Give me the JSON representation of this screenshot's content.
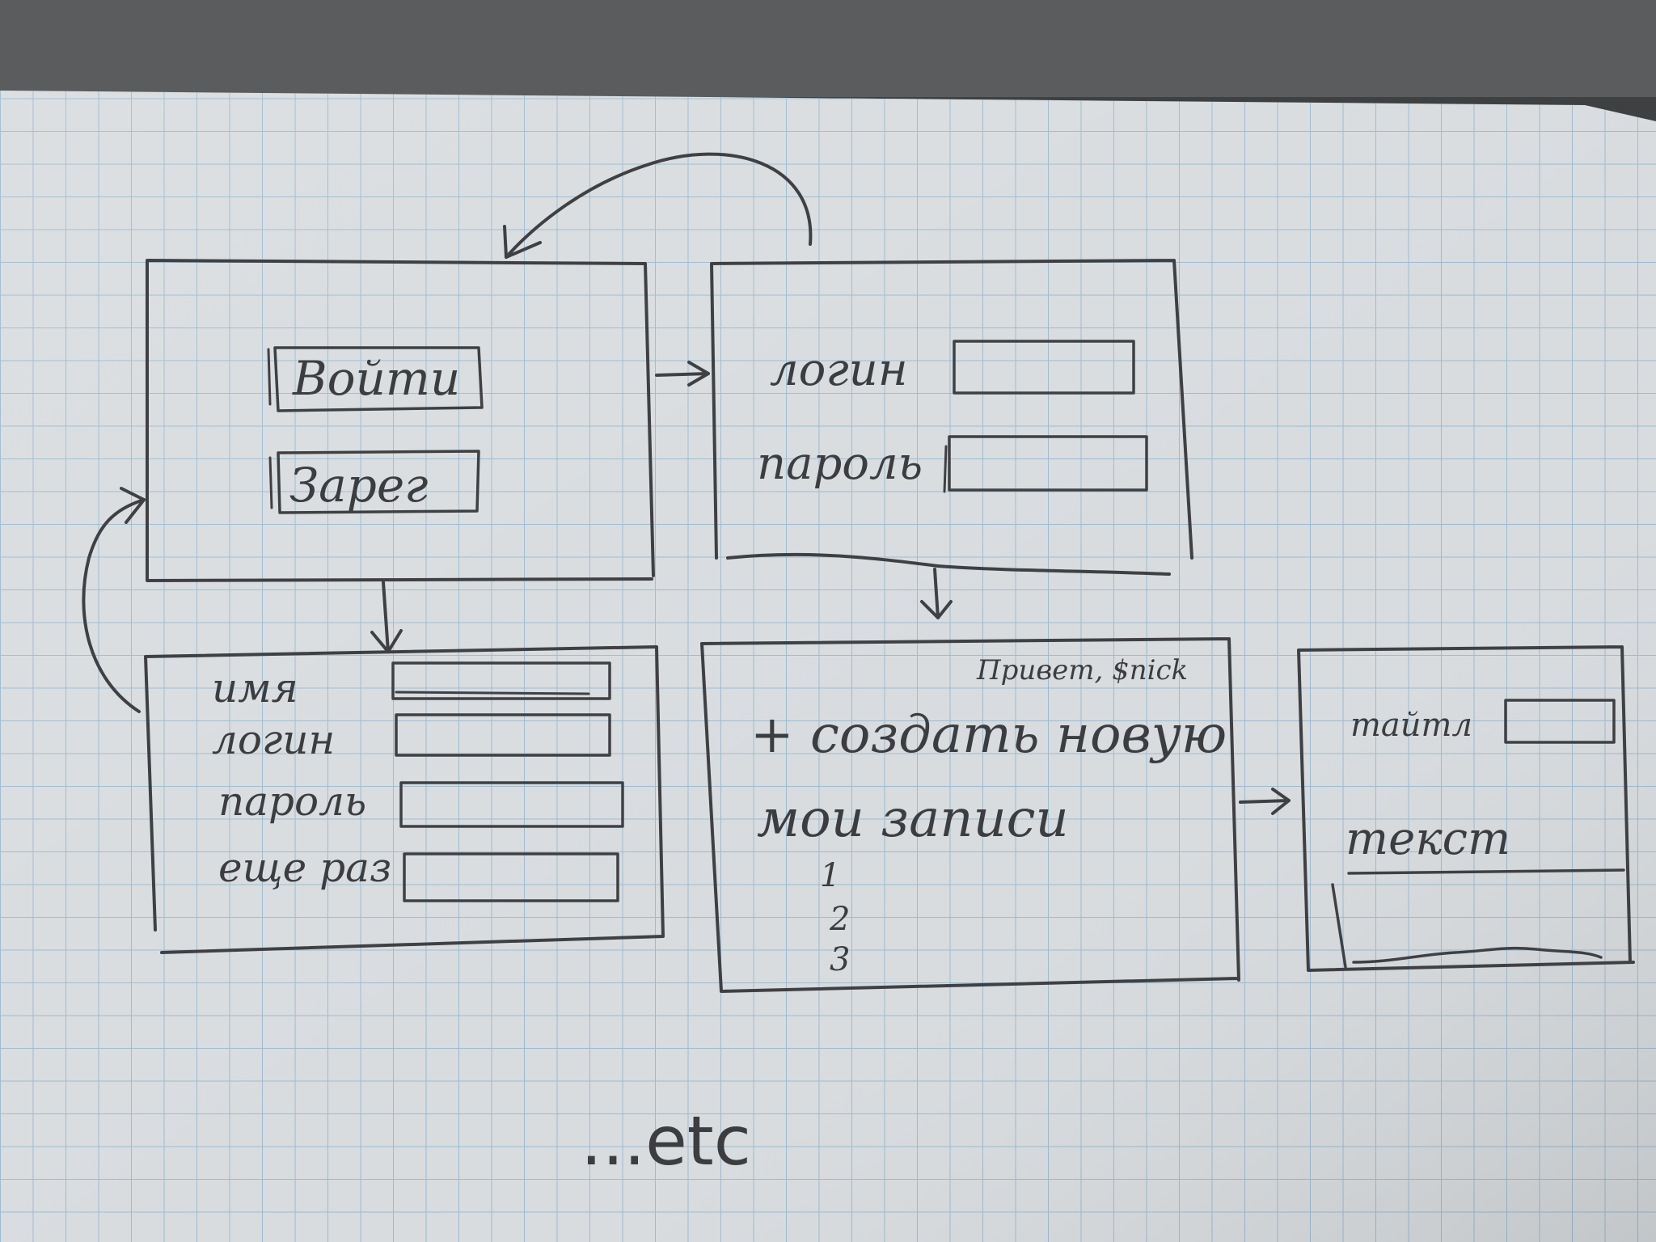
{
  "screens": {
    "start": {
      "login_button": "Войти",
      "register_button": "Зарег"
    },
    "login": {
      "login_label": "логин",
      "password_label": "пароль"
    },
    "register": {
      "name_label": "имя",
      "login_label": "логин",
      "password_label": "пароль",
      "repeat_label": "еще раз"
    },
    "notes": {
      "greeting": "Привет, $nick",
      "create_new": "+ создать новую",
      "my_notes": "мои записи",
      "items": [
        "1",
        "2",
        "3"
      ]
    },
    "editor": {
      "title_label": "тайтл",
      "text_label": "текст"
    }
  },
  "footer_text": "...etc",
  "colors": {
    "paper": "#d9dde0",
    "grid": "#9dbad0",
    "ink": "#3c3d40",
    "background": "#3d3f41"
  }
}
